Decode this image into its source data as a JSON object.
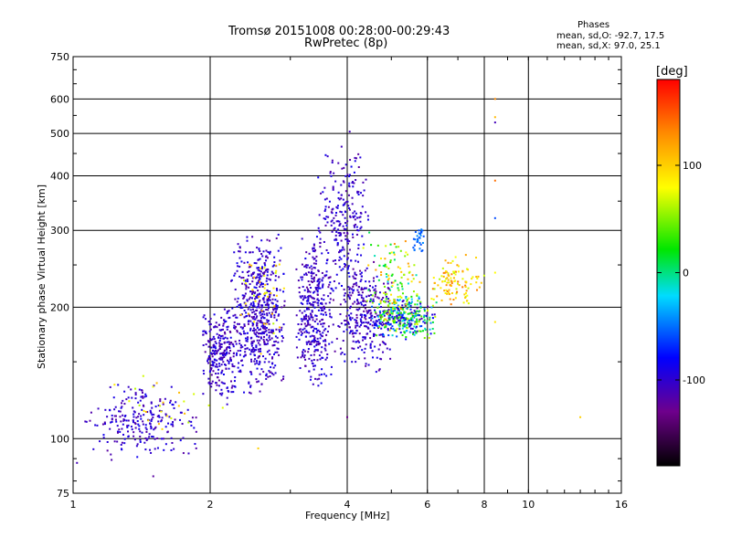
{
  "chart_data": {
    "type": "scatter",
    "title": "Tromsø 20151008 00:28:00-00:29:43",
    "subtitle": "RwPretec (8p)",
    "xlabel": "Frequency [MHz]",
    "ylabel": "Stationary phase Virtual Height [km]",
    "x_scale": "log",
    "y_scale": "log",
    "xlim": [
      1,
      16
    ],
    "ylim": [
      75,
      750
    ],
    "x_ticks": [
      1,
      2,
      4,
      6,
      8,
      10,
      16
    ],
    "x_tick_labels": [
      "1",
      "2",
      "4",
      "6",
      "8",
      "10",
      "16"
    ],
    "y_ticks": [
      75,
      100,
      200,
      300,
      400,
      500,
      600,
      750
    ],
    "y_tick_labels": [
      "75",
      "100",
      "200",
      "300",
      "400",
      "500",
      "600",
      "750"
    ],
    "grid": true,
    "phase_info": {
      "heading": "Phases",
      "line_o": "mean, sd,O: -92.7, 17.5",
      "line_x": "mean, sd,X: 97.0, 25.1"
    },
    "colorbar": {
      "label": "[deg]",
      "range": [
        -180,
        180
      ],
      "ticks": [
        100,
        0,
        -100
      ],
      "tick_labels": [
        "100",
        "0",
        "-100"
      ]
    },
    "clusters": [
      {
        "x": [
          1.04,
          1.9
        ],
        "y": [
          88,
          135
        ],
        "phase": [
          -120,
          -85
        ],
        "n": 240
      },
      {
        "x": [
          1.9,
          2.35
        ],
        "y": [
          118,
          205
        ],
        "phase": [
          -120,
          -85
        ],
        "n": 260
      },
      {
        "x": [
          2.2,
          2.95
        ],
        "y": [
          125,
          305
        ],
        "phase": [
          -120,
          -85
        ],
        "n": 560
      },
      {
        "x": [
          3.05,
          3.75
        ],
        "y": [
          128,
          295
        ],
        "phase": [
          -120,
          -85
        ],
        "n": 360
      },
      {
        "x": [
          3.4,
          4.5
        ],
        "y": [
          210,
          470
        ],
        "phase": [
          -120,
          -85
        ],
        "n": 240
      },
      {
        "x": [
          3.7,
          5.1
        ],
        "y": [
          140,
          260
        ],
        "phase": [
          -125,
          -85
        ],
        "n": 300
      },
      {
        "x": [
          4.4,
          6.3
        ],
        "y": [
          168,
          215
        ],
        "phase": [
          -120,
          80
        ],
        "n": 360
      },
      {
        "x": [
          4.3,
          5.9
        ],
        "y": [
          180,
          305
        ],
        "phase": [
          -20,
          130
        ],
        "n": 110
      },
      {
        "x": [
          5.5,
          5.95
        ],
        "y": [
          265,
          310
        ],
        "phase": [
          -60,
          -40
        ],
        "n": 30
      },
      {
        "x": [
          5.9,
          8.1
        ],
        "y": [
          195,
          265
        ],
        "phase": [
          60,
          140
        ],
        "n": 110
      },
      {
        "x": [
          2.3,
          3.0
        ],
        "y": [
          150,
          290
        ],
        "phase": [
          60,
          120
        ],
        "n": 40
      },
      {
        "x": [
          1.2,
          2.2
        ],
        "y": [
          100,
          150
        ],
        "phase": [
          60,
          120
        ],
        "n": 25
      }
    ],
    "isolated_points": [
      {
        "x": 8.45,
        "y": 600,
        "phase": 130
      },
      {
        "x": 8.45,
        "y": 545,
        "phase": 110
      },
      {
        "x": 8.45,
        "y": 530,
        "phase": -110
      },
      {
        "x": 8.45,
        "y": 390,
        "phase": 140
      },
      {
        "x": 8.45,
        "y": 320,
        "phase": -60
      },
      {
        "x": 8.45,
        "y": 240,
        "phase": 80
      },
      {
        "x": 8.45,
        "y": 185,
        "phase": 90
      },
      {
        "x": 13.0,
        "y": 112,
        "phase": 100
      },
      {
        "x": 4.05,
        "y": 505,
        "phase": -110
      },
      {
        "x": 4.0,
        "y": 112,
        "phase": -130
      },
      {
        "x": 2.55,
        "y": 95,
        "phase": 100
      },
      {
        "x": 1.02,
        "y": 88,
        "phase": -110
      },
      {
        "x": 1.5,
        "y": 82,
        "phase": -120
      }
    ]
  }
}
